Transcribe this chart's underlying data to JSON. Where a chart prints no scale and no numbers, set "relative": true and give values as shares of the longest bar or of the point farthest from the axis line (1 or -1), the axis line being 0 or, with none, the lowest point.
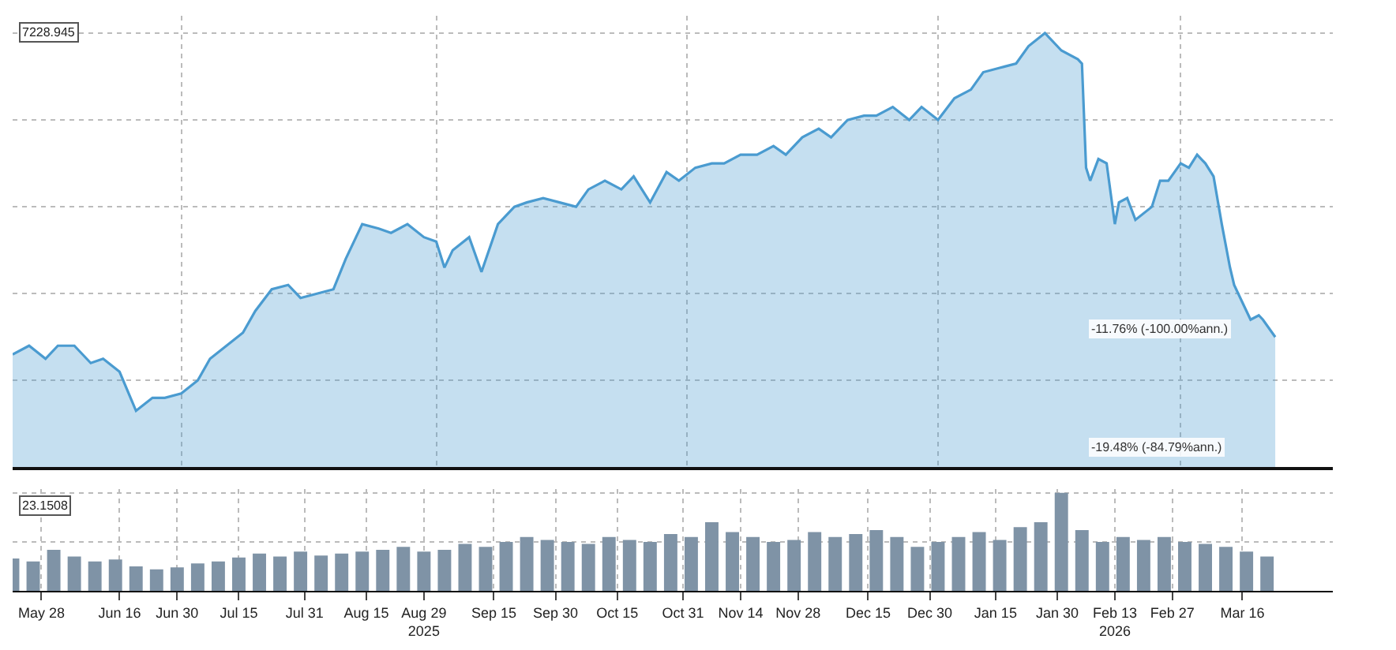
{
  "chart_data": [
    {
      "type": "area",
      "relative": true,
      "grid": true,
      "tick_labels": false,
      "marker": "none",
      "xlim": [
        "2025-05-21",
        "2026-04-07"
      ],
      "annotations": [
        "7228.945",
        "-11.76% (-100.00%ann.)",
        "-19.48% (-84.79%ann.)"
      ],
      "series": [
        {
          "color": "#4a9bd0",
          "x": [
            "2025-05-21",
            "2025-05-25",
            "2025-05-29",
            "2025-06-01",
            "2025-06-05",
            "2025-06-09",
            "2025-06-12",
            "2025-06-16",
            "2025-06-20",
            "2025-06-24",
            "2025-06-27",
            "2025-07-01",
            "2025-07-05",
            "2025-07-08",
            "2025-07-12",
            "2025-07-16",
            "2025-07-19",
            "2025-07-23",
            "2025-07-27",
            "2025-07-30",
            "2025-08-03",
            "2025-08-07",
            "2025-08-10",
            "2025-08-14",
            "2025-08-18",
            "2025-08-21",
            "2025-08-25",
            "2025-08-29",
            "2025-09-01",
            "2025-09-03",
            "2025-09-05",
            "2025-09-09",
            "2025-09-12",
            "2025-09-16",
            "2025-09-20",
            "2025-09-23",
            "2025-09-27",
            "2025-10-01",
            "2025-10-05",
            "2025-10-08",
            "2025-10-12",
            "2025-10-16",
            "2025-10-19",
            "2025-10-23",
            "2025-10-27",
            "2025-10-30",
            "2025-11-03",
            "2025-11-07",
            "2025-11-10",
            "2025-11-14",
            "2025-11-18",
            "2025-11-22",
            "2025-11-25",
            "2025-11-29",
            "2025-12-03",
            "2025-12-06",
            "2025-12-10",
            "2025-12-14",
            "2025-12-17",
            "2025-12-21",
            "2025-12-25",
            "2025-12-28",
            "2026-01-01",
            "2026-01-05",
            "2026-01-09",
            "2026-01-12",
            "2026-01-16",
            "2026-01-20",
            "2026-01-23",
            "2026-01-27",
            "2026-01-31",
            "2026-02-04",
            "2026-02-05",
            "2026-02-06",
            "2026-02-07",
            "2026-02-09",
            "2026-02-11",
            "2026-02-13",
            "2026-02-14",
            "2026-02-16",
            "2026-02-18",
            "2026-02-22",
            "2026-02-24",
            "2026-02-26",
            "2026-03-01",
            "2026-03-03",
            "2026-03-05",
            "2026-03-07",
            "2026-03-09",
            "2026-03-11",
            "2026-03-13",
            "2026-03-14",
            "2026-03-16",
            "2026-03-18",
            "2026-03-20",
            "2026-03-21",
            "2026-03-24"
          ],
          "values": [
            0.26,
            0.28,
            0.25,
            0.28,
            0.28,
            0.24,
            0.25,
            0.22,
            0.13,
            0.16,
            0.16,
            0.17,
            0.2,
            0.25,
            0.28,
            0.31,
            0.36,
            0.41,
            0.42,
            0.39,
            0.4,
            0.41,
            0.48,
            0.56,
            0.55,
            0.54,
            0.56,
            0.53,
            0.52,
            0.46,
            0.5,
            0.53,
            0.45,
            0.56,
            0.6,
            0.61,
            0.62,
            0.61,
            0.6,
            0.64,
            0.66,
            0.64,
            0.67,
            0.61,
            0.68,
            0.66,
            0.69,
            0.7,
            0.7,
            0.72,
            0.72,
            0.74,
            0.72,
            0.76,
            0.78,
            0.76,
            0.8,
            0.81,
            0.81,
            0.83,
            0.8,
            0.83,
            0.8,
            0.85,
            0.87,
            0.91,
            0.92,
            0.93,
            0.97,
            1.0,
            0.96,
            0.94,
            0.93,
            0.69,
            0.66,
            0.71,
            0.7,
            0.56,
            0.61,
            0.62,
            0.57,
            0.6,
            0.66,
            0.66,
            0.7,
            0.69,
            0.72,
            0.7,
            0.67,
            0.56,
            0.46,
            0.42,
            0.38,
            0.34,
            0.35,
            0.34,
            0.3
          ]
        }
      ]
    },
    {
      "type": "bar",
      "relative": true,
      "grid": true,
      "tick_labels": "x",
      "xlim": [
        "2025-05-21",
        "2026-04-07"
      ],
      "xticks": [
        {
          "value": "2025-05-28",
          "label": "May 28"
        },
        {
          "value": "2025-06-16",
          "label": "Jun 16"
        },
        {
          "value": "2025-06-30",
          "label": "Jun 30"
        },
        {
          "value": "2025-07-15",
          "label": "Jul 15"
        },
        {
          "value": "2025-07-31",
          "label": "Jul 31"
        },
        {
          "value": "2025-08-15",
          "label": "Aug 15"
        },
        {
          "value": "2025-08-29",
          "label": "Aug 29\n2025"
        },
        {
          "value": "2025-09-15",
          "label": "Sep 15"
        },
        {
          "value": "2025-09-30",
          "label": "Sep 30"
        },
        {
          "value": "2025-10-15",
          "label": "Oct 15"
        },
        {
          "value": "2025-10-31",
          "label": "Oct 31"
        },
        {
          "value": "2025-11-14",
          "label": "Nov 14"
        },
        {
          "value": "2025-11-28",
          "label": "Nov 28"
        },
        {
          "value": "2025-12-15",
          "label": "Dec 15"
        },
        {
          "value": "2025-12-30",
          "label": "Dec 30"
        },
        {
          "value": "2026-01-15",
          "label": "Jan 15"
        },
        {
          "value": "2026-01-30",
          "label": "Jan 30"
        },
        {
          "value": "2026-02-13",
          "label": "Feb 13\n2026"
        },
        {
          "value": "2026-02-27",
          "label": "Feb 27"
        },
        {
          "value": "2026-03-16",
          "label": "Mar 16"
        }
      ],
      "annotations": [
        "23.1508"
      ],
      "series": [
        {
          "color": "#7f93a6",
          "x": [
            "2025-05-21",
            "2025-05-26",
            "2025-05-31",
            "2025-06-05",
            "2025-06-10",
            "2025-06-15",
            "2025-06-20",
            "2025-06-25",
            "2025-06-30",
            "2025-07-05",
            "2025-07-10",
            "2025-07-15",
            "2025-07-20",
            "2025-07-25",
            "2025-07-30",
            "2025-08-04",
            "2025-08-09",
            "2025-08-14",
            "2025-08-19",
            "2025-08-24",
            "2025-08-29",
            "2025-09-03",
            "2025-09-08",
            "2025-09-13",
            "2025-09-18",
            "2025-09-23",
            "2025-09-28",
            "2025-10-03",
            "2025-10-08",
            "2025-10-13",
            "2025-10-18",
            "2025-10-23",
            "2025-10-28",
            "2025-11-02",
            "2025-11-07",
            "2025-11-12",
            "2025-11-17",
            "2025-11-22",
            "2025-11-27",
            "2025-12-02",
            "2025-12-07",
            "2025-12-12",
            "2025-12-17",
            "2025-12-22",
            "2025-12-27",
            "2026-01-01",
            "2026-01-06",
            "2026-01-11",
            "2026-01-16",
            "2026-01-21",
            "2026-01-26",
            "2026-01-31",
            "2026-02-05",
            "2026-02-10",
            "2026-02-15",
            "2026-02-20",
            "2026-02-25",
            "2026-03-02",
            "2026-03-07",
            "2026-03-12",
            "2026-03-17",
            "2026-03-22"
          ],
          "values": [
            0.33,
            0.3,
            0.42,
            0.35,
            0.3,
            0.32,
            0.25,
            0.22,
            0.24,
            0.28,
            0.3,
            0.34,
            0.38,
            0.35,
            0.4,
            0.36,
            0.38,
            0.4,
            0.42,
            0.45,
            0.4,
            0.42,
            0.48,
            0.45,
            0.5,
            0.55,
            0.52,
            0.5,
            0.48,
            0.55,
            0.52,
            0.5,
            0.58,
            0.55,
            0.7,
            0.6,
            0.55,
            0.5,
            0.52,
            0.6,
            0.55,
            0.58,
            0.62,
            0.55,
            0.45,
            0.5,
            0.55,
            0.6,
            0.52,
            0.65,
            0.7,
            1.0,
            0.62,
            0.5,
            0.55,
            0.52,
            0.55,
            0.5,
            0.48,
            0.45,
            0.4,
            0.35
          ]
        }
      ]
    }
  ]
}
